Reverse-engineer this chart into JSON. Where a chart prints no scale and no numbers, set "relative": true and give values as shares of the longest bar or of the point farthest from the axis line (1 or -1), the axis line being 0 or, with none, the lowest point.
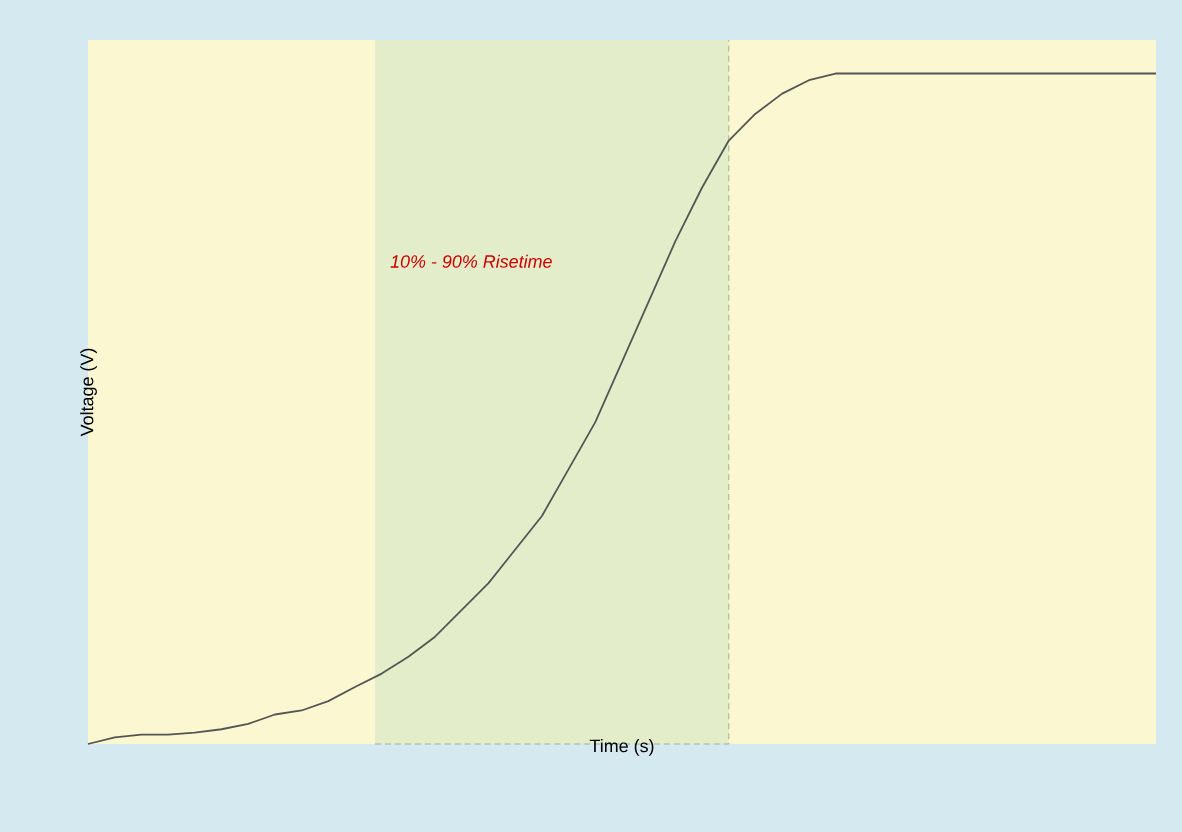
{
  "chart_data": {
    "type": "line",
    "relative": true,
    "xlabel": "Time (s)",
    "ylabel": "Voltage (V)",
    "categories": [
      null,
      null,
      null,
      null,
      null,
      null,
      null,
      null,
      null,
      null,
      null,
      null,
      null,
      null,
      null,
      null,
      null,
      null,
      null,
      null,
      null,
      null,
      null,
      null,
      null,
      null,
      null,
      null,
      null,
      null,
      null,
      null,
      null,
      null,
      null,
      null,
      null,
      null,
      null,
      null,
      null
    ],
    "series": [
      {
        "color": "#555555",
        "values": [
          0,
          0.01,
          0.014,
          0.014,
          0.017,
          0.022,
          0.03,
          0.044,
          0.05,
          0.064,
          0.085,
          0.105,
          0.13,
          0.16,
          0.2,
          0.24,
          0.29,
          0.34,
          0.41,
          0.48,
          0.57,
          0.66,
          0.75,
          0.83,
          0.9,
          0.94,
          0.97,
          0.99,
          1,
          1,
          1,
          1,
          1,
          1,
          1,
          1,
          1,
          1,
          1,
          1,
          1
        ]
      }
    ],
    "annotations": [
      "10% - 90% Risetime"
    ]
  }
}
